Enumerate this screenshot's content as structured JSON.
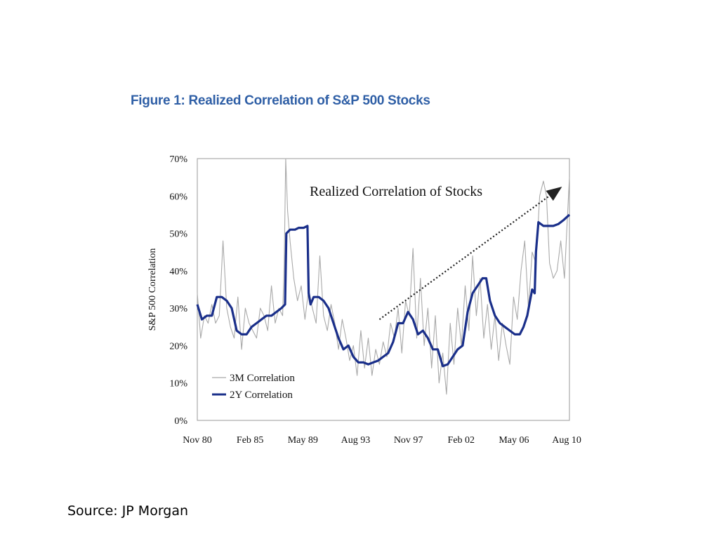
{
  "figure_title": "Figure 1: Realized Correlation of S&P 500 Stocks",
  "source": "Source: JP Morgan",
  "colors": {
    "title": "#2f5fa6",
    "series_3m": "#a9a9a9",
    "series_2y": "#1a2f8a",
    "frame": "#9a9a9a"
  },
  "chart_data": {
    "type": "line",
    "title": "Figure 1: Realized Correlation of S&P 500 Stocks",
    "ylabel": "S&P 500 Correlation",
    "xlabel": "",
    "ylim": [
      0,
      70
    ],
    "xlim": [
      1980.83,
      2010.8
    ],
    "yticks": [
      "0%",
      "10%",
      "20%",
      "30%",
      "40%",
      "50%",
      "60%",
      "70%"
    ],
    "yticks_values": [
      0,
      10,
      20,
      30,
      40,
      50,
      60,
      70
    ],
    "xticks": [
      "Nov 80",
      "Feb 85",
      "May 89",
      "Aug 93",
      "Nov 97",
      "Feb 02",
      "May 06",
      "Aug 10"
    ],
    "xticks_values": [
      1980.83,
      1985.08,
      1989.33,
      1993.58,
      1997.83,
      2002.08,
      2006.33,
      2010.58
    ],
    "annotation": "Realized Correlation of Stocks",
    "annotation_arrow": {
      "from": [
        1995.5,
        27
      ],
      "to": [
        2010.0,
        62
      ]
    },
    "legend_position": "lower-left",
    "grid": false,
    "series": [
      {
        "name": "3M Correlation",
        "x": [
          1980.83,
          1981.1,
          1981.4,
          1981.7,
          1982.0,
          1982.3,
          1982.6,
          1982.9,
          1983.2,
          1983.5,
          1983.8,
          1984.1,
          1984.4,
          1984.7,
          1985.0,
          1985.3,
          1985.6,
          1985.9,
          1986.2,
          1986.5,
          1986.8,
          1987.1,
          1987.4,
          1987.7,
          1987.83,
          1987.95,
          1988.1,
          1988.3,
          1988.6,
          1988.9,
          1989.2,
          1989.5,
          1989.8,
          1990.1,
          1990.4,
          1990.7,
          1991.0,
          1991.3,
          1991.6,
          1991.9,
          1992.2,
          1992.5,
          1992.8,
          1993.1,
          1993.4,
          1993.7,
          1994.0,
          1994.3,
          1994.6,
          1994.9,
          1995.2,
          1995.5,
          1995.8,
          1996.1,
          1996.4,
          1996.7,
          1997.0,
          1997.3,
          1997.6,
          1997.9,
          1998.2,
          1998.5,
          1998.8,
          1999.1,
          1999.4,
          1999.7,
          2000.0,
          2000.3,
          2000.6,
          2000.9,
          2001.2,
          2001.5,
          2001.8,
          2002.1,
          2002.4,
          2002.7,
          2003.0,
          2003.3,
          2003.6,
          2003.9,
          2004.2,
          2004.5,
          2004.8,
          2005.1,
          2005.4,
          2005.7,
          2006.0,
          2006.3,
          2006.6,
          2006.9,
          2007.2,
          2007.5,
          2007.8,
          2008.1,
          2008.4,
          2008.7,
          2008.95,
          2009.2,
          2009.5,
          2009.8,
          2010.1,
          2010.4,
          2010.6,
          2010.8
        ],
        "values": [
          34,
          22,
          28,
          26,
          31,
          26,
          28,
          48,
          30,
          25,
          22,
          33,
          19,
          30,
          26,
          24,
          22,
          30,
          28,
          24,
          36,
          26,
          30,
          28,
          42,
          70,
          56,
          48,
          38,
          32,
          36,
          27,
          35,
          30,
          26,
          44,
          28,
          24,
          31,
          26,
          19,
          27,
          22,
          16,
          20,
          12,
          24,
          14,
          22,
          12,
          19,
          15,
          21,
          17,
          26,
          22,
          30,
          18,
          32,
          28,
          46,
          22,
          38,
          20,
          30,
          14,
          28,
          10,
          18,
          7,
          26,
          15,
          30,
          20,
          36,
          24,
          44,
          28,
          38,
          22,
          31,
          19,
          28,
          16,
          26,
          20,
          15,
          33,
          27,
          40,
          48,
          30,
          45,
          42,
          60,
          64,
          60,
          42,
          38,
          40,
          48,
          38,
          52,
          65
        ]
      },
      {
        "name": "2Y Correlation",
        "x": [
          1980.83,
          1981.2,
          1981.6,
          1982.0,
          1982.4,
          1982.8,
          1983.2,
          1983.6,
          1984.0,
          1984.4,
          1984.8,
          1985.2,
          1985.6,
          1986.0,
          1986.4,
          1986.8,
          1987.2,
          1987.6,
          1987.9,
          1988.0,
          1988.3,
          1988.7,
          1989.0,
          1989.4,
          1989.7,
          1989.8,
          1989.95,
          1990.2,
          1990.6,
          1991.0,
          1991.4,
          1991.8,
          1992.2,
          1992.6,
          1993.0,
          1993.4,
          1993.8,
          1994.2,
          1994.6,
          1995.0,
          1995.4,
          1995.8,
          1996.2,
          1996.6,
          1997.0,
          1997.4,
          1997.8,
          1998.2,
          1998.6,
          1999.0,
          1999.4,
          1999.8,
          2000.2,
          2000.6,
          2001.0,
          2001.4,
          2001.8,
          2002.2,
          2002.6,
          2003.0,
          2003.4,
          2003.8,
          2004.1,
          2004.4,
          2004.8,
          2005.2,
          2005.6,
          2006.0,
          2006.4,
          2006.8,
          2007.1,
          2007.4,
          2007.8,
          2008.0,
          2008.1,
          2008.3,
          2008.7,
          2009.1,
          2009.5,
          2009.9,
          2010.3,
          2010.8
        ],
        "values": [
          31,
          27,
          28,
          28,
          33,
          33,
          32,
          30,
          24,
          23,
          23,
          25,
          26,
          27,
          28,
          28,
          29,
          30,
          31,
          50,
          51,
          51,
          51.5,
          51.5,
          52,
          34,
          31,
          33,
          33,
          32,
          30,
          26,
          22,
          19,
          20,
          17,
          15.5,
          15.5,
          15,
          15.5,
          16,
          17,
          18,
          21,
          26,
          26,
          29,
          27,
          23,
          24,
          22,
          19,
          19,
          14.5,
          15,
          17,
          19,
          20,
          29,
          34,
          36,
          38,
          38,
          32,
          28,
          26,
          25,
          24,
          23,
          23,
          25,
          28,
          35,
          34,
          45,
          53,
          52,
          52,
          52,
          52.5,
          53.5,
          55
        ]
      }
    ]
  }
}
